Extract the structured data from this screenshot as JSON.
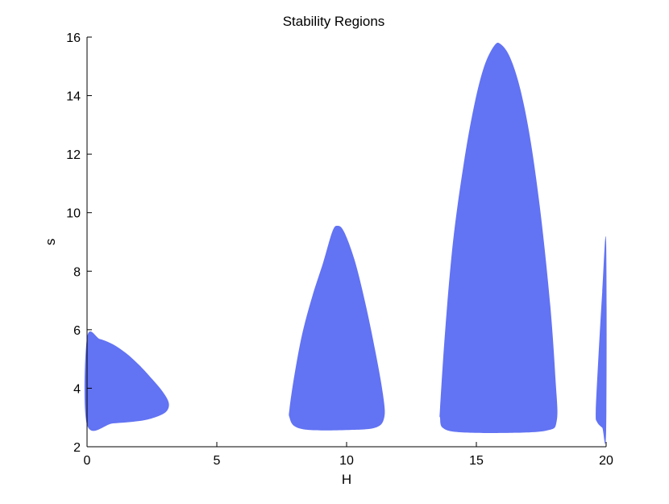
{
  "chart_data": {
    "type": "area",
    "title": "Stability Regions",
    "xlabel": "H",
    "ylabel": "s",
    "xlim": [
      0,
      20
    ],
    "ylim": [
      2,
      16
    ],
    "xticks": [
      "0",
      "5",
      "10",
      "15",
      "20"
    ],
    "yticks": [
      "2",
      "4",
      "6",
      "8",
      "10",
      "12",
      "14",
      "16"
    ],
    "grid": false,
    "fill_color": "#5a6cf2",
    "regions": [
      {
        "points": [
          [
            0,
            5.73
          ],
          [
            0.5,
            5.68
          ],
          [
            1.0,
            5.5
          ],
          [
            1.5,
            5.2
          ],
          [
            2.0,
            4.8
          ],
          [
            2.5,
            4.32
          ],
          [
            2.9,
            3.9
          ],
          [
            3.15,
            3.5
          ],
          [
            3.05,
            3.2
          ],
          [
            2.6,
            3.0
          ],
          [
            2.0,
            2.88
          ],
          [
            1.0,
            2.8
          ],
          [
            0,
            2.75
          ]
        ]
      },
      {
        "points": [
          [
            7.8,
            3.3
          ],
          [
            8.0,
            4.5
          ],
          [
            8.3,
            5.9
          ],
          [
            8.7,
            7.2
          ],
          [
            9.1,
            8.3
          ],
          [
            9.45,
            9.35
          ],
          [
            9.65,
            9.55
          ],
          [
            9.9,
            9.35
          ],
          [
            10.3,
            8.4
          ],
          [
            10.7,
            7.0
          ],
          [
            11.1,
            5.3
          ],
          [
            11.4,
            3.8
          ],
          [
            11.45,
            3.0
          ],
          [
            11.1,
            2.65
          ],
          [
            10.0,
            2.57
          ],
          [
            8.6,
            2.57
          ],
          [
            8.0,
            2.7
          ],
          [
            7.8,
            3.0
          ]
        ]
      },
      {
        "points": [
          [
            13.6,
            3.3
          ],
          [
            13.8,
            6.0
          ],
          [
            14.1,
            9.0
          ],
          [
            14.5,
            11.6
          ],
          [
            14.9,
            13.6
          ],
          [
            15.3,
            15.0
          ],
          [
            15.7,
            15.72
          ],
          [
            15.95,
            15.75
          ],
          [
            16.3,
            15.3
          ],
          [
            16.7,
            14.2
          ],
          [
            17.1,
            12.4
          ],
          [
            17.5,
            9.8
          ],
          [
            17.85,
            6.8
          ],
          [
            18.05,
            4.3
          ],
          [
            18.1,
            2.9
          ],
          [
            17.7,
            2.55
          ],
          [
            16.0,
            2.47
          ],
          [
            14.3,
            2.5
          ],
          [
            13.7,
            2.65
          ],
          [
            13.6,
            3.0
          ]
        ]
      },
      {
        "points": [
          [
            19.6,
            3.2
          ],
          [
            19.7,
            5.0
          ],
          [
            19.85,
            7.3
          ],
          [
            20.0,
            9.0
          ],
          [
            20.0,
            2.55
          ],
          [
            19.85,
            2.65
          ],
          [
            19.65,
            2.85
          ]
        ]
      }
    ]
  }
}
